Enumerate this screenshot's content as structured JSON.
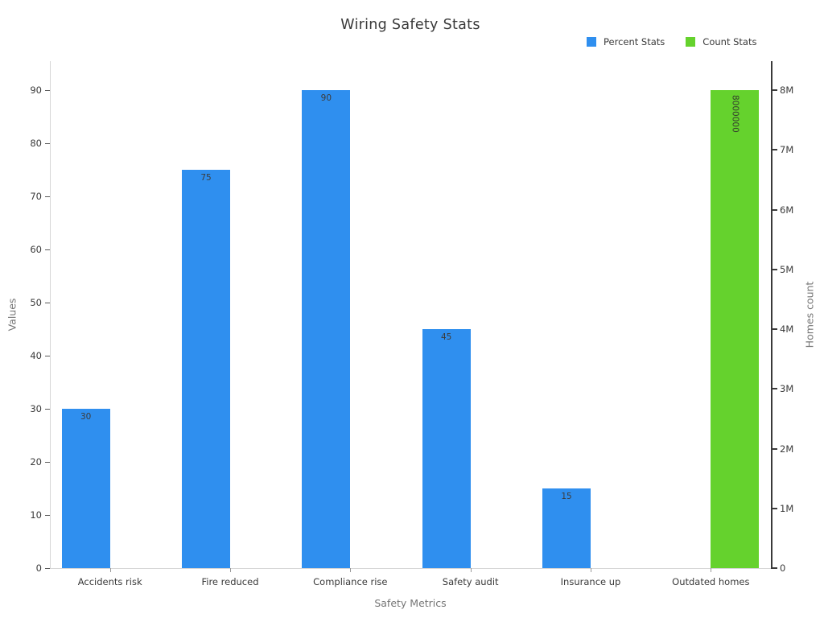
{
  "header": {
    "title": "Wiring Safety Stats"
  },
  "chart_data": {
    "type": "bar",
    "title": "Wiring Safety Stats",
    "xlabel": "Safety Metrics",
    "ylabel_left": "Values",
    "ylabel_right": "Homes count",
    "categories": [
      "Accidents risk",
      "Fire reduced",
      "Compliance rise",
      "Safety audit",
      "Insurance up",
      "Outdated homes"
    ],
    "series": [
      {
        "name": "Percent Stats",
        "axis": "left",
        "color": "#2f8fef",
        "values": [
          30,
          75,
          90,
          45,
          15,
          null
        ],
        "bar_labels": [
          "30",
          "75",
          "90",
          "45",
          "15",
          null
        ]
      },
      {
        "name": "Count Stats",
        "axis": "right",
        "color": "#65d22d",
        "values": [
          null,
          null,
          null,
          null,
          null,
          8000000
        ],
        "bar_labels": [
          null,
          null,
          null,
          null,
          null,
          "8000000"
        ]
      }
    ],
    "left_axis": {
      "min": 0,
      "max": 90,
      "step": 10,
      "tick_labels": [
        "0",
        "10",
        "20",
        "30",
        "40",
        "50",
        "60",
        "70",
        "80",
        "90"
      ]
    },
    "right_axis": {
      "min": 0,
      "max": 8000000,
      "step": 1000000,
      "tick_labels": [
        "0",
        "1M",
        "2M",
        "3M",
        "4M",
        "5M",
        "6M",
        "7M",
        "8M"
      ]
    },
    "legend": {
      "position": "top-right",
      "items": [
        {
          "label": "Percent Stats",
          "color": "#2f8fef"
        },
        {
          "label": "Count Stats",
          "color": "#65d22d"
        }
      ]
    },
    "grid": false,
    "background": "#ffffff"
  }
}
